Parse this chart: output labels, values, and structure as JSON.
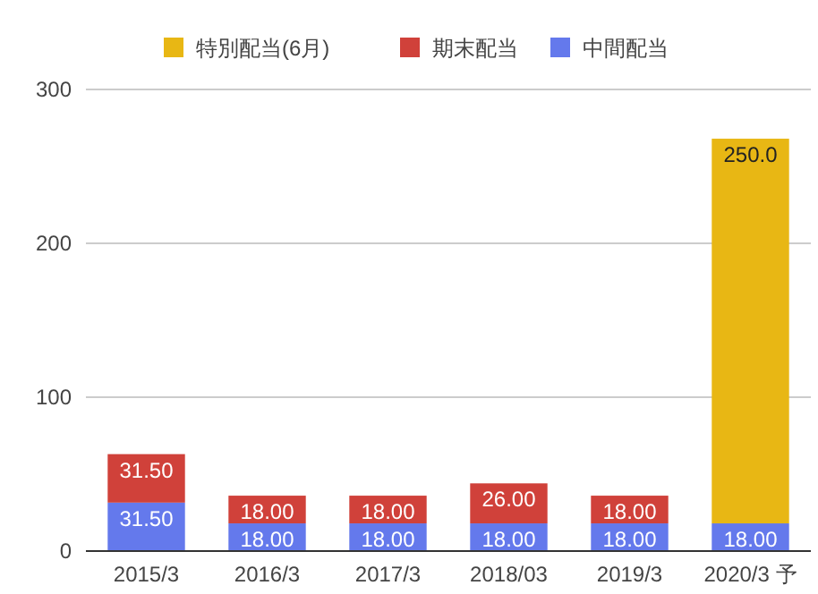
{
  "chart_data": {
    "type": "bar",
    "stacked": true,
    "categories": [
      "2015/3",
      "2016/3",
      "2017/3",
      "2018/03",
      "2019/3",
      "2020/3 予"
    ],
    "series": [
      {
        "name": "中間配当",
        "color": "#6479ec",
        "values": [
          31.5,
          18,
          18,
          18,
          18,
          18
        ],
        "value_labels": [
          "31.50",
          "18.00",
          "18.00",
          "18.00",
          "18.00",
          "18.00"
        ]
      },
      {
        "name": "期末配当",
        "color": "#d0413a",
        "values": [
          31.5,
          18,
          18,
          26,
          18,
          null
        ],
        "value_labels": [
          "31.50",
          "18.00",
          "18.00",
          "26.00",
          "18.00",
          null
        ]
      },
      {
        "name": "特別配当(6月)",
        "color": "#e8b714",
        "values": [
          null,
          null,
          null,
          null,
          null,
          250
        ],
        "value_labels": [
          null,
          null,
          null,
          null,
          null,
          "250.0"
        ]
      }
    ],
    "ylim": [
      0,
      300
    ],
    "yticks": [
      0,
      100,
      200,
      300
    ],
    "grid": "y",
    "legend": "top"
  }
}
